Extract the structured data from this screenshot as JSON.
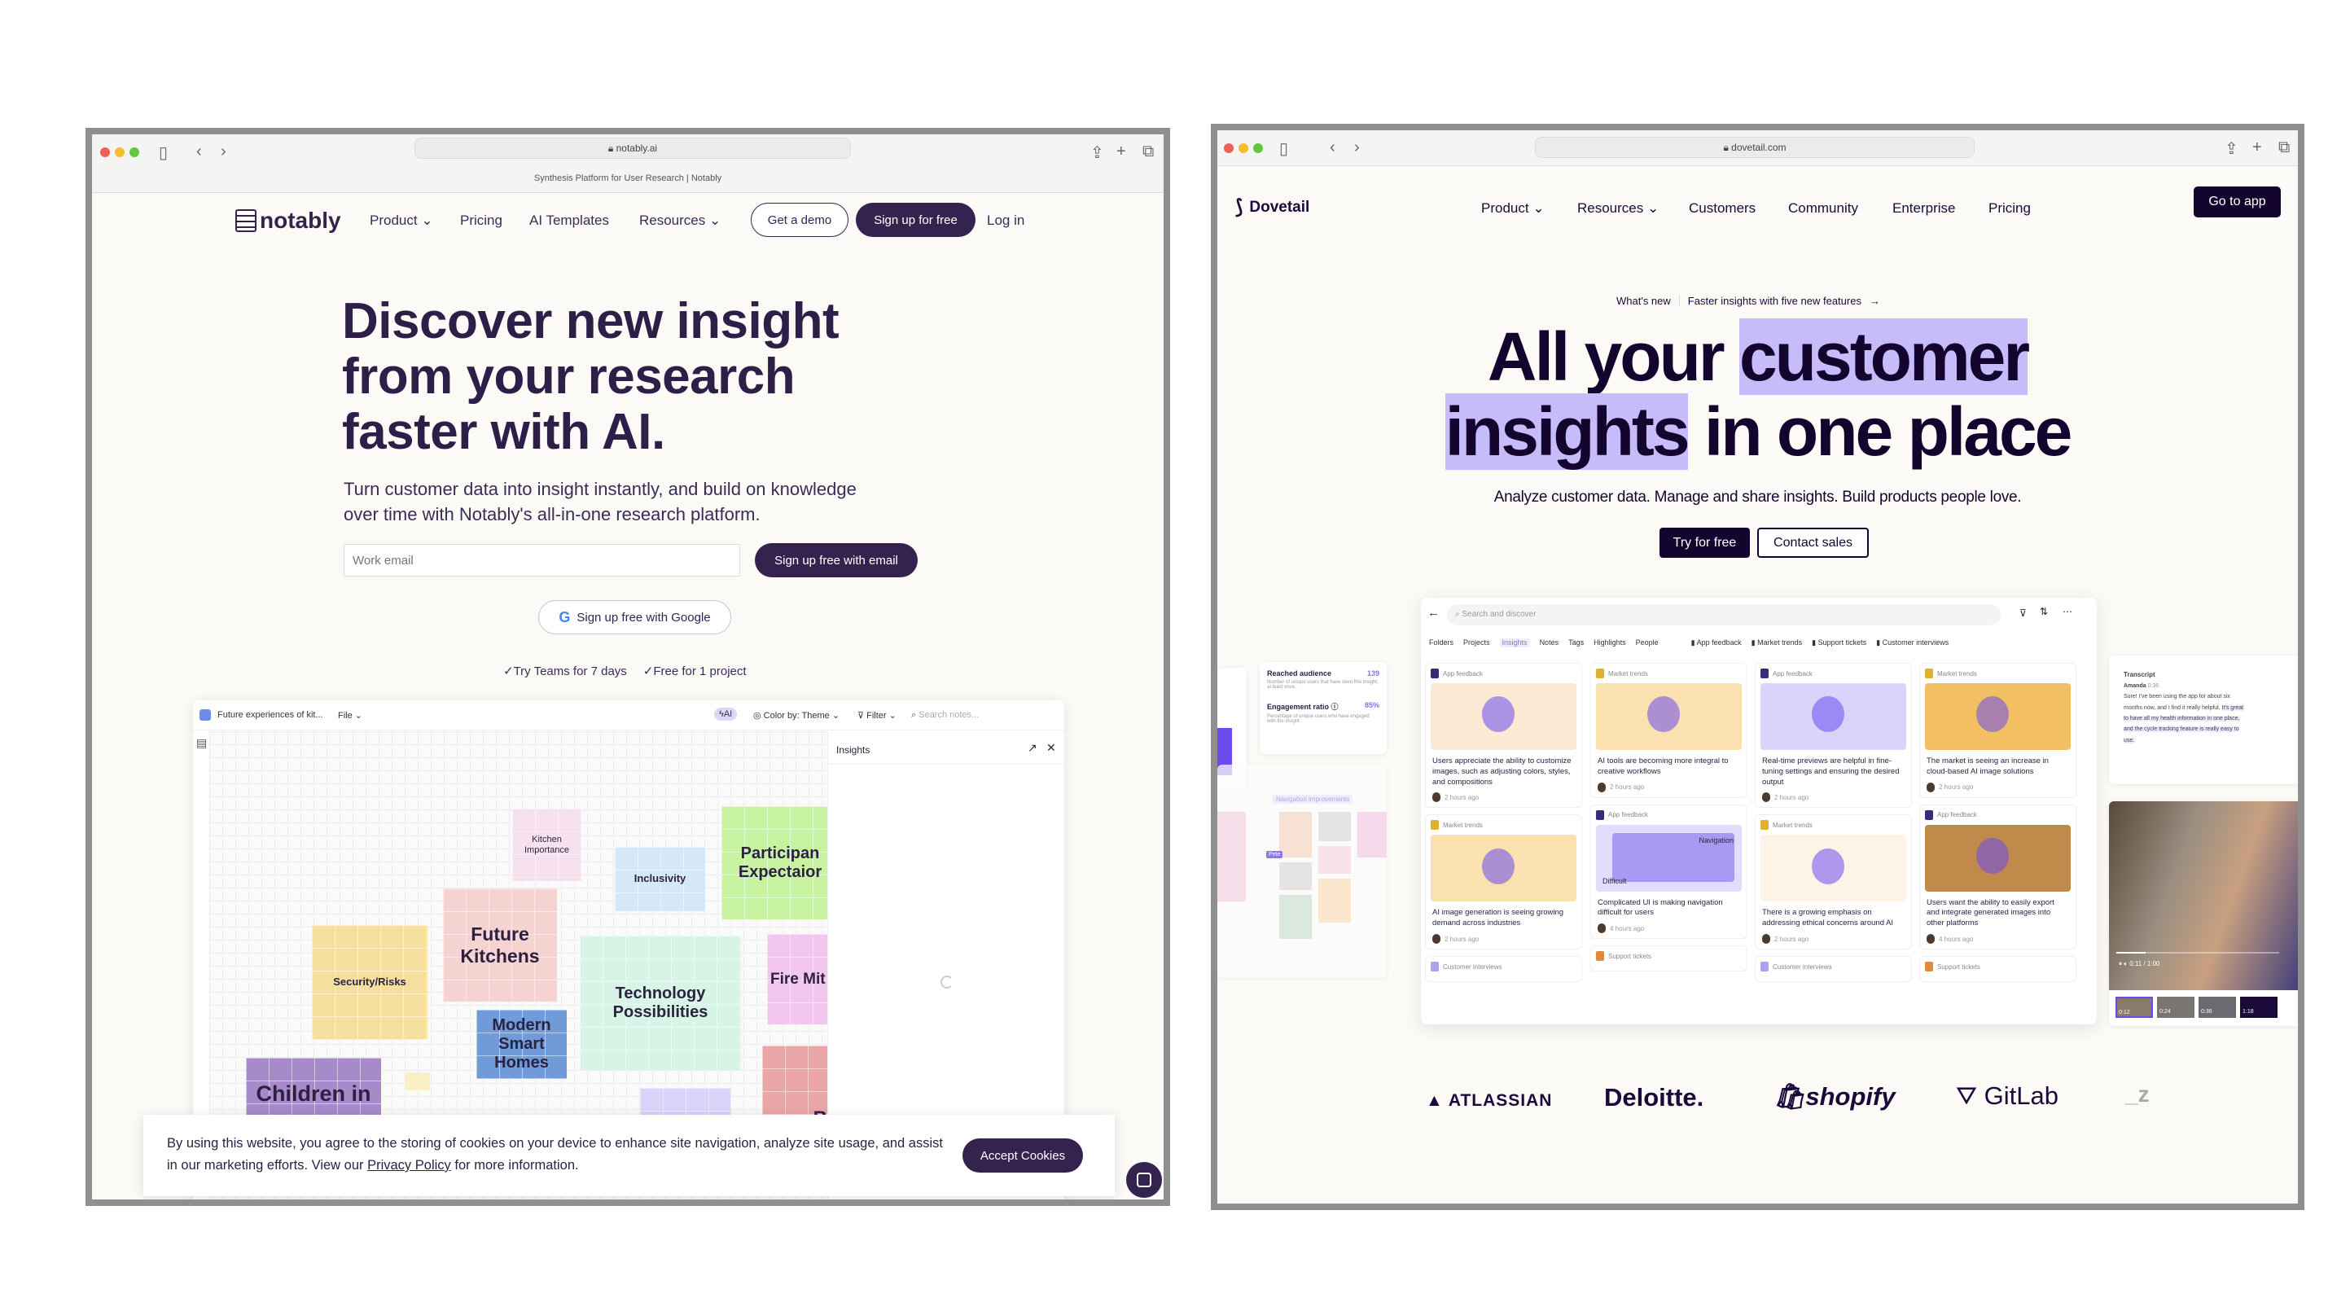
{
  "notably": {
    "url": "notably.ai",
    "tab_title": "Synthesis Platform for User Research | Notably",
    "logo": "notably",
    "nav": [
      "Product",
      "Pricing",
      "AI Templates",
      "Resources"
    ],
    "get_demo": "Get a demo",
    "signup": "Sign up for free",
    "login": "Log in",
    "headline": [
      "Discover new insight",
      "from your research",
      "faster with AI."
    ],
    "subtitle": [
      "Turn customer data into insight instantly, and build on knowledge",
      "over time with Notably's all-in-one research platform."
    ],
    "email_placeholder": "Work email",
    "email_button": "Sign up free with email",
    "google_button": "Sign up free with Google",
    "perks": [
      "✓Try Teams for 7 days",
      "✓Free for 1 project"
    ],
    "app": {
      "doc_title": "Future experiences of kit...",
      "file_menu": "File",
      "ai": "AI",
      "color_by": "Color by: Theme",
      "filter": "Filter",
      "search_placeholder": "Search notes...",
      "panel_title": "Insights",
      "stickies": [
        "Kitchen Importance",
        "Inclusivity",
        "Participan Expectaior",
        "Future Kitchens",
        "Security/Risks",
        "Technology Possibilities",
        "Fire Mit",
        "Modern Smart Homes",
        "Children in",
        "B"
      ]
    },
    "cookie": {
      "text_before": "By using this website, you agree to the storing of cookies on your device to enhance site navigation, analyze site usage, and assist in our marketing efforts. View our ",
      "link": "Privacy Policy",
      "text_after": " for more information.",
      "accept": "Accept Cookies"
    }
  },
  "dovetail": {
    "url": "dovetail.com",
    "logo": "Dovetail",
    "nav": [
      "Product",
      "Resources",
      "Customers",
      "Community",
      "Enterprise",
      "Pricing"
    ],
    "go_to_app": "Go to app",
    "whats_new": "What's new",
    "announcement": "Faster insights with five new features",
    "headline": {
      "a": "All your ",
      "b": "customer",
      "c": "insights",
      "d": " in one place"
    },
    "highlight_color": "#c6bcfa",
    "subtitle": "Analyze customer data. Manage and share insights. Build products people love.",
    "try_free": "Try for free",
    "contact_sales": "Contact sales",
    "app": {
      "search_placeholder": "Search and discover",
      "tabs": [
        "Folders",
        "Projects",
        "Insights",
        "Notes",
        "Tags",
        "Highlights",
        "People"
      ],
      "active_tab": "Insights",
      "sources": [
        "App feedback",
        "Market trends",
        "Support tickets",
        "Customer interviews"
      ],
      "columns": [
        [
          {
            "tag": "App feedback",
            "title": "Users appreciate the ability to customize images, such as adjusting colors, styles, and compositions",
            "time": "2 hours ago"
          },
          {
            "tag": "Market trends",
            "title": "AI image generation is seeing growing demand across industries",
            "time": "2 hours ago"
          },
          {
            "tag": "Customer interviews"
          }
        ],
        [
          {
            "tag": "Market trends",
            "title": "AI tools are becoming more integral to creative workflows",
            "time": "2 hours ago"
          },
          {
            "tag": "App feedback",
            "title": "Complicated UI is making navigation difficult for users",
            "time": "4 hours ago",
            "labels": [
              "Navigation",
              "Difficult"
            ]
          },
          {
            "tag": "Support tickets"
          }
        ],
        [
          {
            "tag": "App feedback",
            "title": "Real-time previews are helpful in fine-tuning settings and ensuring the desired output",
            "time": "2 hours ago"
          },
          {
            "tag": "Market trends",
            "title": "There is a growing emphasis on addressing ethical concerns around AI",
            "time": "2 hours ago"
          },
          {
            "tag": "Customer interviews"
          }
        ],
        [
          {
            "tag": "Market trends",
            "title": "The market is seeing an increase in cloud-based AI image solutions",
            "time": "2 hours ago"
          },
          {
            "tag": "App feedback",
            "title": "Users want the ability to easily export and integrate generated images into other platforms",
            "time": "4 hours ago"
          },
          {
            "tag": "Support tickets"
          }
        ]
      ]
    },
    "stats": {
      "reached_label": "Reached audience",
      "reached_value": "139",
      "reached_desc": "Number of unique users that have seen this insight, at least once.",
      "engagement_label": "Engagement ratio",
      "engagement_value": "85%",
      "engagement_desc": "Percentage of unique users who have engaged with the insight."
    },
    "board_label": "Navigation improvements",
    "cursor_name": "Pete",
    "transcript": {
      "title": "Transcript",
      "speaker": "Amanda",
      "time": "0:36",
      "text": "Sure! I've been using the app for about six months now, and I find it really helpful. ",
      "highlight": "It's great to have all my health information in one place, and the cycle tracking feature is really easy to use."
    },
    "video": {
      "time": "0:11 / 1:00",
      "progress": 0.18,
      "thumbs": [
        "0:12",
        "0:24",
        "0:36",
        "1:18"
      ]
    },
    "logos": [
      "ATLASSIAN",
      "Deloitte.",
      "shopify",
      "GitLab"
    ]
  }
}
